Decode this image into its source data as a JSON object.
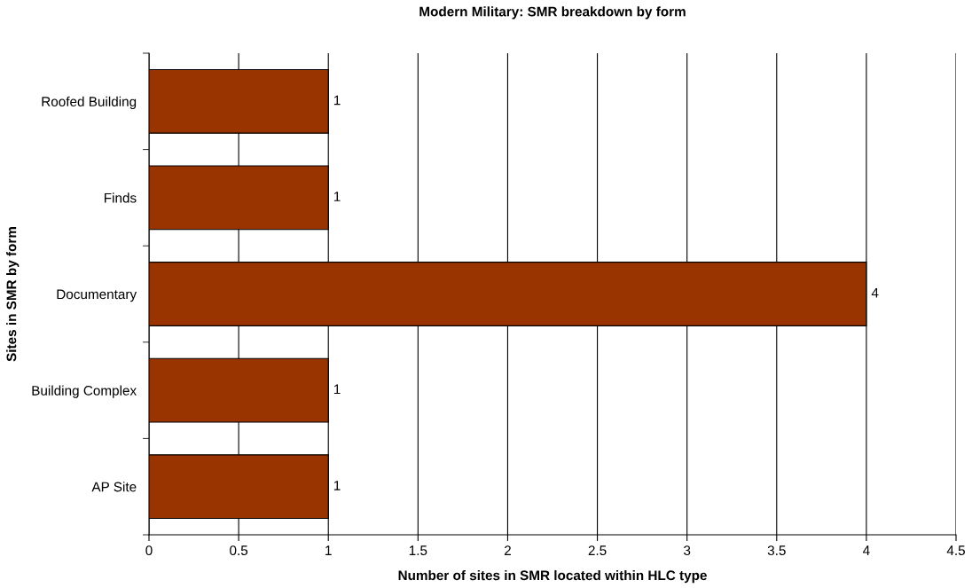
{
  "chart_data": {
    "type": "bar",
    "orientation": "horizontal",
    "title": "Modern Military: SMR breakdown by form",
    "xlabel": "Number of sites in SMR located within HLC type",
    "ylabel": "Sites in SMR by form",
    "categories": [
      "Roofed Building",
      "Finds",
      "Documentary",
      "Building Complex",
      "AP Site"
    ],
    "values": [
      1,
      1,
      4,
      1,
      1
    ],
    "color": "#993300",
    "xlim": [
      0,
      4.5
    ],
    "xticks": [
      0,
      0.5,
      1,
      1.5,
      2,
      2.5,
      3,
      3.5,
      4,
      4.5
    ],
    "grid": "x",
    "data_labels": true,
    "legend": false
  }
}
